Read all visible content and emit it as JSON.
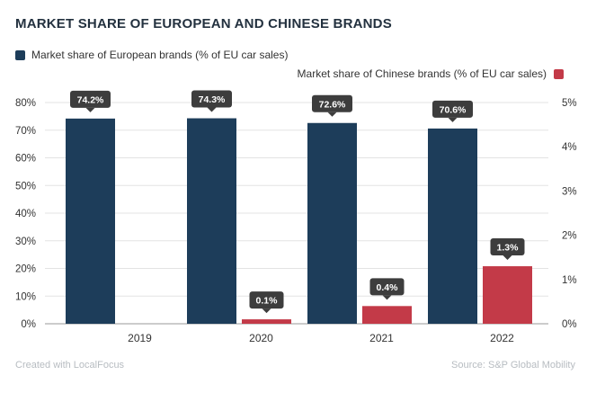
{
  "title": "MARKET SHARE OF EUROPEAN AND CHINESE BRANDS",
  "legend": {
    "left": {
      "label": "Market share of European brands (% of EU car sales)",
      "color": "#1d3d5a"
    },
    "right": {
      "label": "Market share of Chinese brands (% of EU car sales)",
      "color": "#c33a48"
    }
  },
  "footer": {
    "left": "Created with LocalFocus",
    "right": "Source:  S&P Global Mobility"
  },
  "chart_data": {
    "type": "bar",
    "categories": [
      "2019",
      "2020",
      "2021",
      "2022"
    ],
    "series": [
      {
        "name": "Market share of European brands (% of EU car sales)",
        "axis": "left",
        "color": "#1d3d5a",
        "values": [
          74.2,
          74.3,
          72.6,
          70.6
        ],
        "labels": [
          "74.2%",
          "74.3%",
          "72.6%",
          "70.6%"
        ]
      },
      {
        "name": "Market share of Chinese brands (% of EU car sales)",
        "axis": "right",
        "color": "#c33a48",
        "values": [
          null,
          0.1,
          0.4,
          1.3
        ],
        "labels": [
          "",
          "0.1%",
          "0.4%",
          "1.3%"
        ]
      }
    ],
    "y_left": {
      "min": 0,
      "max": 80,
      "ticks": [
        "0%",
        "10%",
        "20%",
        "30%",
        "40%",
        "50%",
        "60%",
        "70%",
        "80%"
      ],
      "tick_values": [
        0,
        10,
        20,
        30,
        40,
        50,
        60,
        70,
        80
      ]
    },
    "y_right": {
      "min": 0,
      "max": 5,
      "ticks": [
        "0%",
        "1%",
        "2%",
        "3%",
        "4%",
        "5%"
      ],
      "tick_values": [
        0,
        1,
        2,
        3,
        4,
        5
      ]
    },
    "grid": true,
    "label_bg": "#3d3d3d"
  }
}
